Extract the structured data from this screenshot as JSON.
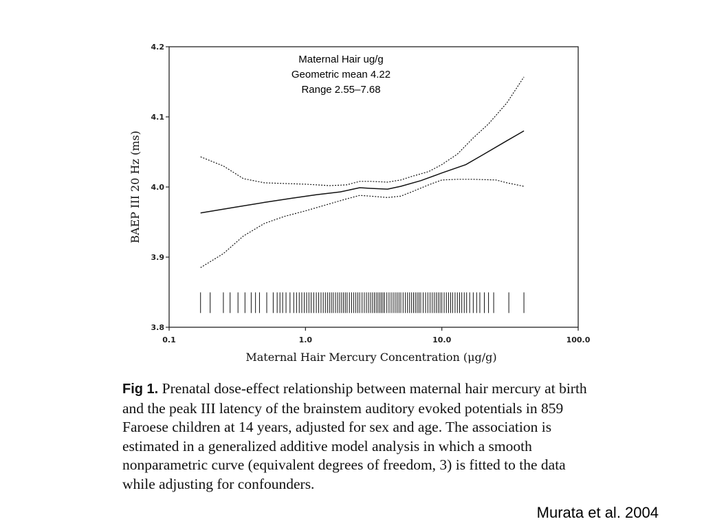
{
  "chart_data": {
    "type": "line",
    "xlabel": "Maternal Hair Mercury Concentration (μg/g)",
    "ylabel": "BAEP III 20 Hz (ms)",
    "x_scale": "log",
    "xlim": [
      0.1,
      100.0
    ],
    "ylim": [
      3.8,
      4.2
    ],
    "x_tick_labels": [
      "0.1",
      "1.0",
      "10.0",
      "100.0"
    ],
    "x_ticks": [
      0.1,
      1.0,
      10.0,
      100.0
    ],
    "y_tick_labels": [
      "3.8",
      "3.9",
      "4.0",
      "4.1",
      "4.2"
    ],
    "y_ticks": [
      3.8,
      3.9,
      4.0,
      4.1,
      4.2
    ],
    "annotation": [
      "Maternal Hair ug/g",
      "Geometric mean 4.22",
      "Range 2.55–7.68"
    ],
    "series": [
      {
        "style": "solid",
        "x": [
          0.17,
          0.3,
          0.5,
          0.8,
          1.2,
          1.8,
          2.5,
          3.0,
          4.0,
          5.0,
          7.0,
          10.0,
          15.0,
          20.0,
          30.0,
          40.0
        ],
        "y": [
          3.963,
          3.971,
          3.978,
          3.984,
          3.989,
          3.993,
          3.999,
          3.998,
          3.997,
          4.001,
          4.009,
          4.02,
          4.032,
          4.046,
          4.066,
          4.08
        ]
      },
      {
        "style": "dotted",
        "x": [
          0.17,
          0.25,
          0.35,
          0.5,
          0.7,
          1.0,
          1.5,
          2.0,
          2.5,
          3.0,
          4.0,
          5.0,
          6.0,
          8.0,
          10.0,
          13.0,
          17.0,
          22.0,
          30.0,
          40.0
        ],
        "y": [
          4.043,
          4.03,
          4.012,
          4.006,
          4.005,
          4.004,
          4.002,
          4.003,
          4.008,
          4.008,
          4.007,
          4.01,
          4.015,
          4.022,
          4.032,
          4.047,
          4.07,
          4.09,
          4.12,
          4.157
        ]
      },
      {
        "style": "dotted",
        "x": [
          0.17,
          0.25,
          0.35,
          0.5,
          0.7,
          1.0,
          1.5,
          2.0,
          2.5,
          3.0,
          4.0,
          5.0,
          6.0,
          8.0,
          10.0,
          13.0,
          17.0,
          25.0,
          30.0,
          40.0
        ],
        "y": [
          3.885,
          3.905,
          3.93,
          3.948,
          3.958,
          3.966,
          3.976,
          3.983,
          3.988,
          3.987,
          3.985,
          3.987,
          3.993,
          4.003,
          4.01,
          4.011,
          4.011,
          4.01,
          4.006,
          4.001
        ]
      }
    ],
    "rug_y": 3.835,
    "rug_x": [
      0.17,
      0.2,
      0.25,
      0.28,
      0.32,
      0.36,
      0.4,
      0.43,
      0.46,
      0.52,
      0.58,
      0.62,
      0.65,
      0.68,
      0.72,
      0.77,
      0.82,
      0.86,
      0.9,
      0.94,
      0.98,
      1.02,
      1.06,
      1.1,
      1.15,
      1.2,
      1.25,
      1.3,
      1.35,
      1.4,
      1.45,
      1.5,
      1.55,
      1.6,
      1.66,
      1.72,
      1.78,
      1.84,
      1.9,
      1.96,
      2.02,
      2.1,
      2.18,
      2.26,
      2.34,
      2.42,
      2.5,
      2.6,
      2.7,
      2.8,
      2.9,
      3.0,
      3.1,
      3.2,
      3.3,
      3.4,
      3.5,
      3.6,
      3.7,
      3.8,
      3.95,
      4.1,
      4.25,
      4.4,
      4.55,
      4.7,
      4.85,
      5.0,
      5.2,
      5.4,
      5.6,
      5.8,
      6.0,
      6.2,
      6.4,
      6.6,
      6.8,
      7.0,
      7.3,
      7.6,
      7.9,
      8.2,
      8.5,
      8.8,
      9.1,
      9.4,
      9.7,
      10.0,
      10.4,
      10.8,
      11.2,
      11.6,
      12.0,
      12.5,
      13.0,
      13.5,
      14.0,
      14.6,
      15.2,
      16.0,
      17.0,
      18.0,
      19.0,
      20.5,
      22.0,
      24.0,
      31.0,
      40.0
    ]
  },
  "caption": {
    "label": "Fig 1.",
    "text": "Prenatal dose-effect relationship between maternal hair mercury at birth and the peak III latency of the brainstem auditory evoked potentials in 859 Faroese children at 14 years, adjusted for sex and age. The association is estimated in a generalized additive model analysis in which a smooth nonparametric curve (equivalent degrees of freedom, 3) is fitted to the data while adjusting for confounders."
  },
  "citation": "Murata et al. 2004"
}
